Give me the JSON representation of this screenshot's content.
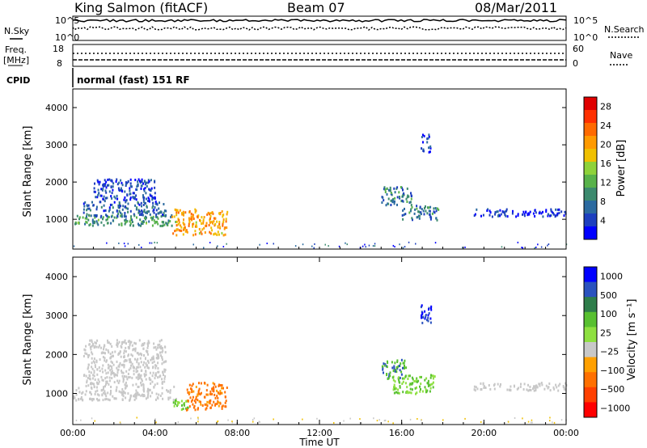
{
  "header": {
    "station": "King Salmon (fitACF)",
    "beam": "Beam 07",
    "date": "08/Mar/2011"
  },
  "top_panels": {
    "nsky_label": "N.Sky",
    "nsearch_label": "N.Search",
    "noise_ticks_left": [
      "10^5",
      "10^0"
    ],
    "noise_ticks_right": [
      "10^5",
      "10^0"
    ],
    "freq_label_1": "Freq.",
    "freq_label_2": "[MHz]",
    "freq_ticks": [
      "18",
      "8"
    ],
    "nave_label": "Nave",
    "nave_ticks": [
      "60",
      "0"
    ],
    "cpid_label": "CPID",
    "cpid_text": "normal (fast) 151 RF"
  },
  "colors": {
    "power_scale": [
      "#0000ff",
      "#1d3fbf",
      "#2b6aa0",
      "#3c8a6e",
      "#58b24a",
      "#8ed23a",
      "#f0c000",
      "#ff9a00",
      "#ff6a00",
      "#ff3000",
      "#e00000"
    ],
    "velocity_scale": [
      "#0000ff",
      "#2a52be",
      "#2e7d4a",
      "#58c030",
      "#8ee040",
      "#c8c8c8",
      "#ffa000",
      "#ff7000",
      "#ff4000",
      "#ff0000"
    ]
  },
  "chart_data": [
    {
      "type": "heatmap",
      "name": "power",
      "ylabel": "Slant Range [km]",
      "yticks": [
        "1000",
        "2000",
        "3000",
        "4000"
      ],
      "ylim": [
        200,
        4500
      ],
      "xlim": [
        0,
        24
      ],
      "colorbar_label": "Power [dB]",
      "colorbar_ticks": [
        "4",
        "8",
        "12",
        "16",
        "20",
        "24",
        "28"
      ],
      "clim": [
        0,
        30
      ],
      "regions": [
        {
          "x": [
            0.0,
            5.0
          ],
          "y": [
            850,
            1150
          ],
          "value": 10
        },
        {
          "x": [
            0.5,
            4.5
          ],
          "y": [
            1100,
            1500
          ],
          "value": 6
        },
        {
          "x": [
            1.0,
            4.0
          ],
          "y": [
            1500,
            2100
          ],
          "value": 4
        },
        {
          "x": [
            4.8,
            7.5
          ],
          "y": [
            600,
            1300
          ],
          "value": 20
        },
        {
          "x": [
            15.0,
            16.5
          ],
          "y": [
            1400,
            1900
          ],
          "value": 8
        },
        {
          "x": [
            16.0,
            17.8
          ],
          "y": [
            1000,
            1400
          ],
          "value": 8
        },
        {
          "x": [
            16.9,
            17.4
          ],
          "y": [
            2800,
            3300
          ],
          "value": 4
        },
        {
          "x": [
            19.5,
            24.0
          ],
          "y": [
            1100,
            1300
          ],
          "value": 3
        }
      ]
    },
    {
      "type": "heatmap",
      "name": "velocity",
      "ylabel": "Slant Range [km]",
      "yticks": [
        "1000",
        "2000",
        "3000",
        "4000"
      ],
      "ylim": [
        200,
        4500
      ],
      "xlim": [
        0,
        24
      ],
      "xlabel": "Time UT",
      "xticks": [
        "00:00",
        "04:00",
        "08:00",
        "12:00",
        "16:00",
        "20:00",
        "00:00"
      ],
      "colorbar_label": "Velocity [m s⁻¹]",
      "colorbar_ticks": [
        "1000",
        "500",
        "100",
        "25",
        "−25",
        "−100",
        "−500",
        "−1000"
      ],
      "clim": [
        -1000,
        1000
      ],
      "regions": [
        {
          "x": [
            0.0,
            5.0
          ],
          "y": [
            850,
            1200
          ],
          "value": 0
        },
        {
          "x": [
            0.5,
            4.5
          ],
          "y": [
            1200,
            2400
          ],
          "value": 0
        },
        {
          "x": [
            4.8,
            5.6
          ],
          "y": [
            600,
            900
          ],
          "value": 100
        },
        {
          "x": [
            5.5,
            7.5
          ],
          "y": [
            600,
            1300
          ],
          "value": -120
        },
        {
          "x": [
            15.0,
            16.2
          ],
          "y": [
            1400,
            1900
          ],
          "value": 500
        },
        {
          "x": [
            15.5,
            17.6
          ],
          "y": [
            1000,
            1500
          ],
          "value": 100
        },
        {
          "x": [
            16.9,
            17.4
          ],
          "y": [
            2800,
            3300
          ],
          "value": 1000
        },
        {
          "x": [
            19.5,
            24.0
          ],
          "y": [
            1100,
            1300
          ],
          "value": 0
        }
      ]
    }
  ]
}
